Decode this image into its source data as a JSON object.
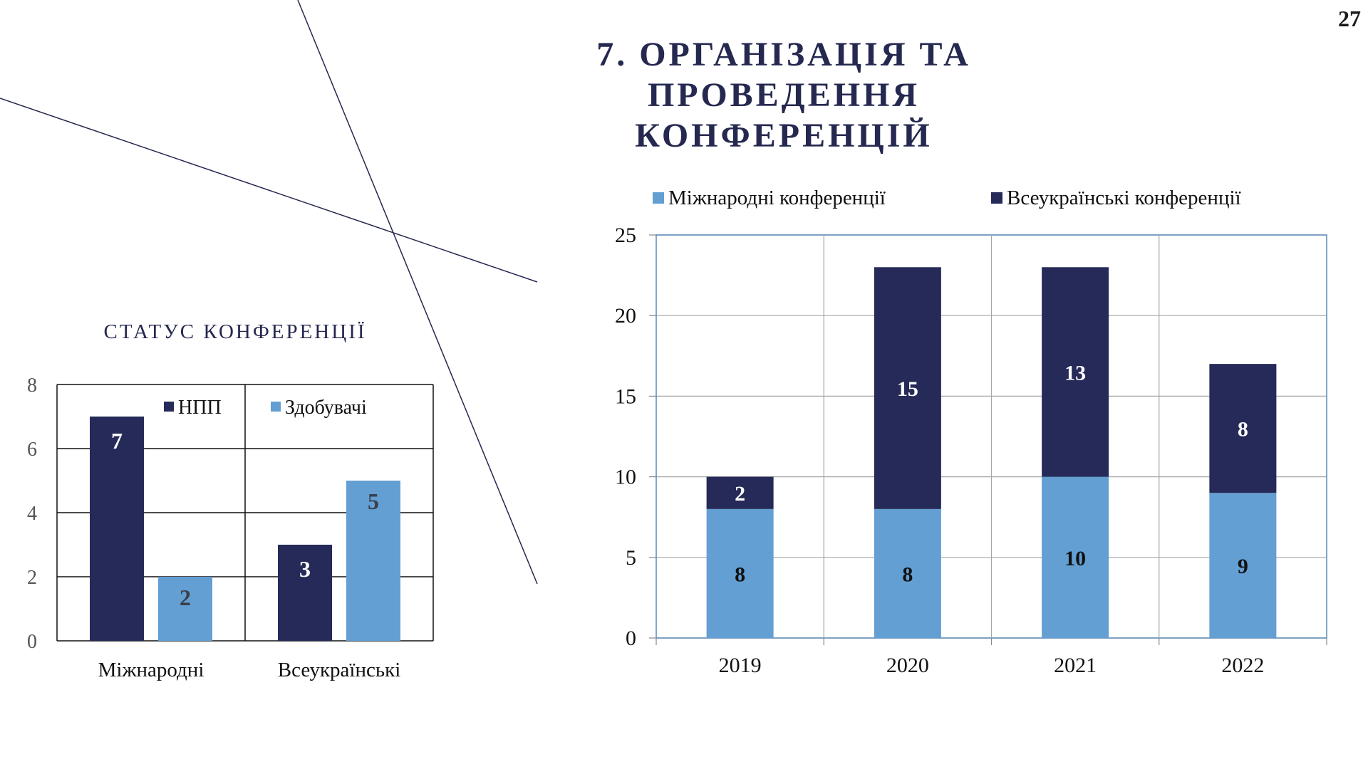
{
  "page_number": "27",
  "title": {
    "line1": "7. ОРГАНІЗАЦІЯ ТА ПРОВЕДЕННЯ",
    "line2": "КОНФЕРЕНЦІЙ"
  },
  "colors": {
    "dark_navy": "#262a58",
    "light_blue": "#639fd2",
    "title": "#25284f"
  },
  "chart_data": [
    {
      "type": "bar",
      "title": "СТАТУС КОНФЕРЕНЦІЇ",
      "categories": [
        "Міжнародні",
        "Всеукраїнські"
      ],
      "series": [
        {
          "name": "НПП",
          "values": [
            7,
            3
          ],
          "color": "#262a58"
        },
        {
          "name": "Здобувачі",
          "values": [
            2,
            5
          ],
          "color": "#639fd2"
        }
      ],
      "ylim": [
        0,
        8
      ],
      "yticks": [
        "0",
        "2",
        "4",
        "6",
        "8"
      ],
      "grid": true,
      "legend_position": "top-inside"
    },
    {
      "type": "bar",
      "stacked": true,
      "title": "",
      "categories": [
        "2019",
        "2020",
        "2021",
        "2022"
      ],
      "series": [
        {
          "name": "Міжнародні конференції",
          "values": [
            8,
            8,
            10,
            9
          ],
          "color": "#639fd2"
        },
        {
          "name": "Всеукраїнські конференції",
          "values": [
            2,
            15,
            13,
            8
          ],
          "color": "#262a58"
        }
      ],
      "ylim": [
        0,
        25
      ],
      "yticks": [
        "0",
        "5",
        "10",
        "15",
        "20",
        "25"
      ],
      "grid": true,
      "legend_position": "top"
    }
  ]
}
